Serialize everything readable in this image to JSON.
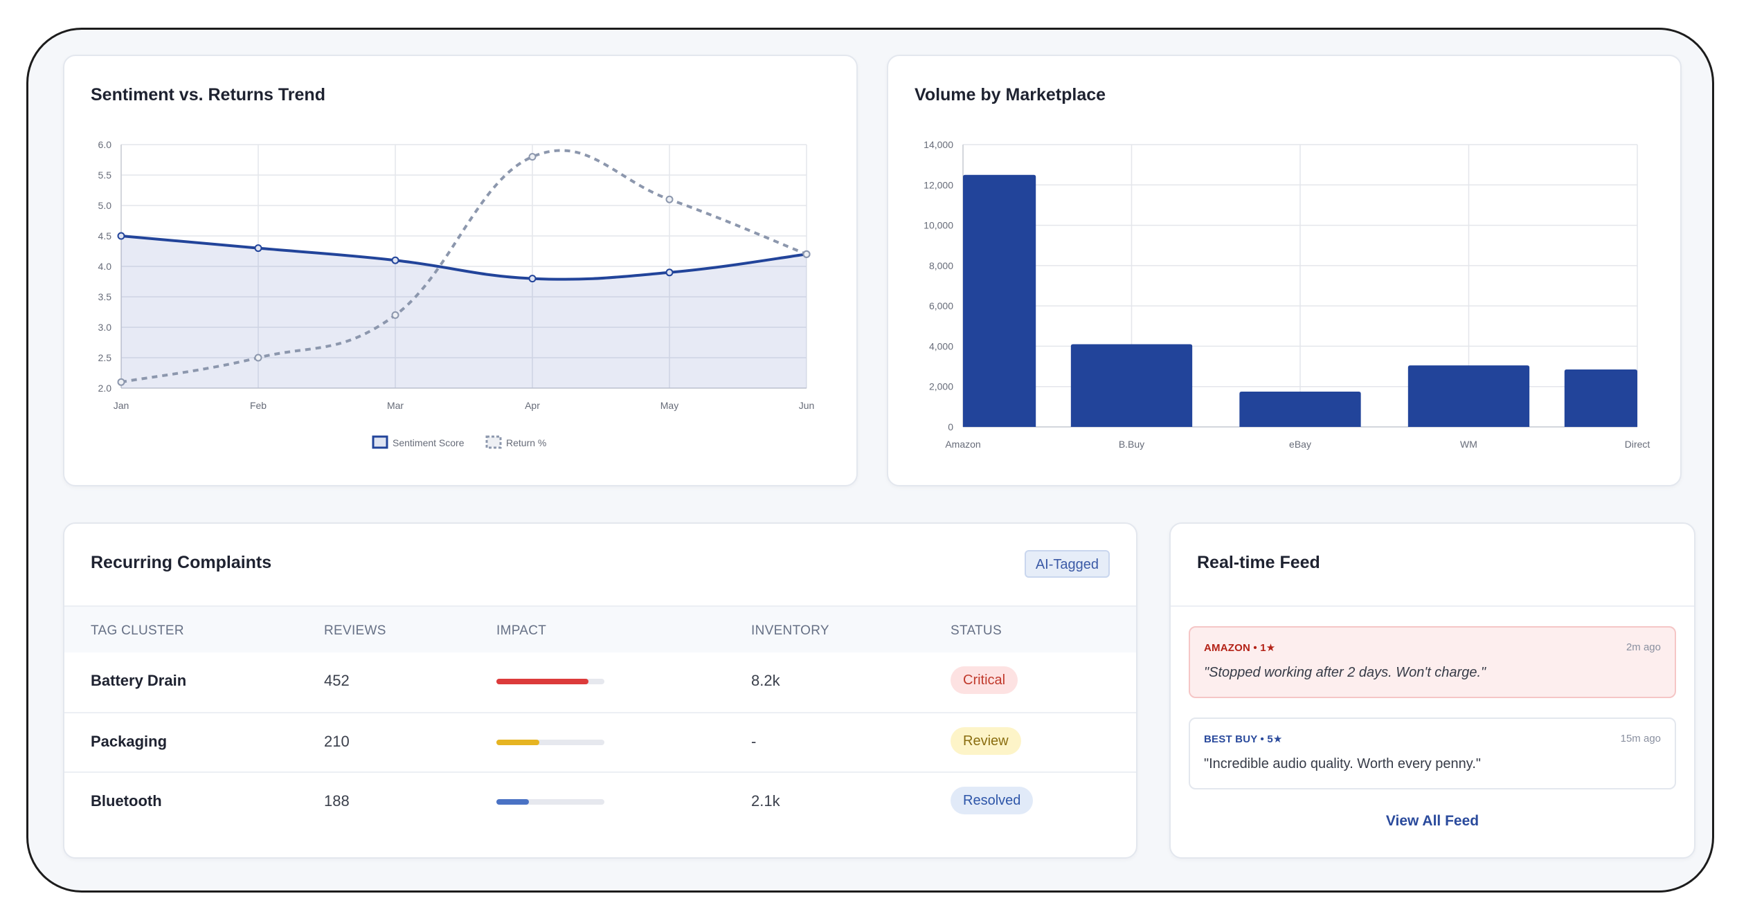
{
  "trend": {
    "title": "Sentiment vs. Returns Trend",
    "chart_data": {
      "type": "line",
      "categories": [
        "Jan",
        "Feb",
        "Mar",
        "Apr",
        "May",
        "Jun"
      ],
      "series": [
        {
          "name": "Sentiment Score",
          "values": [
            4.5,
            4.3,
            4.1,
            3.8,
            3.9,
            4.2
          ],
          "color": "#22449a",
          "style": "solid-filled"
        },
        {
          "name": "Return %",
          "values": [
            2.1,
            2.5,
            3.2,
            5.8,
            5.1,
            4.2
          ],
          "color": "#8c97ad",
          "style": "dashed"
        }
      ],
      "ylim": [
        2.0,
        6.0
      ],
      "yticks": [
        "6.0",
        "5.5",
        "5.0",
        "4.5",
        "4.0",
        "3.5",
        "3.0",
        "2.5",
        "2.0"
      ],
      "legend": "bottom",
      "grid": true
    }
  },
  "marketplace": {
    "title": "Volume by Marketplace",
    "chart_data": {
      "type": "bar",
      "categories": [
        "Amazon",
        "B.Buy",
        "eBay",
        "WM",
        "Direct"
      ],
      "values": [
        12500,
        4100,
        1750,
        3050,
        2850
      ],
      "ylim": [
        0,
        14000
      ],
      "yticks": [
        "14,000",
        "12,000",
        "10,000",
        "8,000",
        "6,000",
        "4,000",
        "2,000",
        "0"
      ],
      "color": "#22449a",
      "grid": true
    }
  },
  "complaints": {
    "title": "Recurring Complaints",
    "badge": "AI-Tagged",
    "columns": [
      "TAG CLUSTER",
      "REVIEWS",
      "IMPACT",
      "INVENTORY",
      "STATUS"
    ],
    "rows": [
      {
        "tag": "Battery Drain",
        "reviews": "452",
        "impact": 0.85,
        "impact_color": "#dc3b3b",
        "inventory": "8.2k",
        "status": "Critical",
        "status_color": "#c0392b",
        "status_bg": "#fde2e2"
      },
      {
        "tag": "Packaging",
        "reviews": "210",
        "impact": 0.4,
        "impact_color": "#e6b422",
        "inventory": "-",
        "status": "Review",
        "status_color": "#8a6d10",
        "status_bg": "#fdf4c8"
      },
      {
        "tag": "Bluetooth",
        "reviews": "188",
        "impact": 0.3,
        "impact_color": "#4a72c4",
        "inventory": "2.1k",
        "status": "Resolved",
        "status_color": "#2d55a8",
        "status_bg": "#e1eaf8"
      }
    ]
  },
  "feed": {
    "title": "Real-time Feed",
    "items": [
      {
        "source": "AMAZON • 1★",
        "time": "2m ago",
        "text": "\"Stopped working after 2 days. Won't charge.\"",
        "italic": true,
        "source_color": "#b42318",
        "bg": "#fdeeee",
        "border": "#f5c6c6"
      },
      {
        "source": "BEST BUY • 5★",
        "time": "15m ago",
        "text": "\"Incredible audio quality. Worth every penny.\"",
        "italic": false,
        "source_color": "#2a4a9c",
        "bg": "#ffffff",
        "border": "#e3e7ee"
      }
    ],
    "view_all": "View All Feed"
  }
}
